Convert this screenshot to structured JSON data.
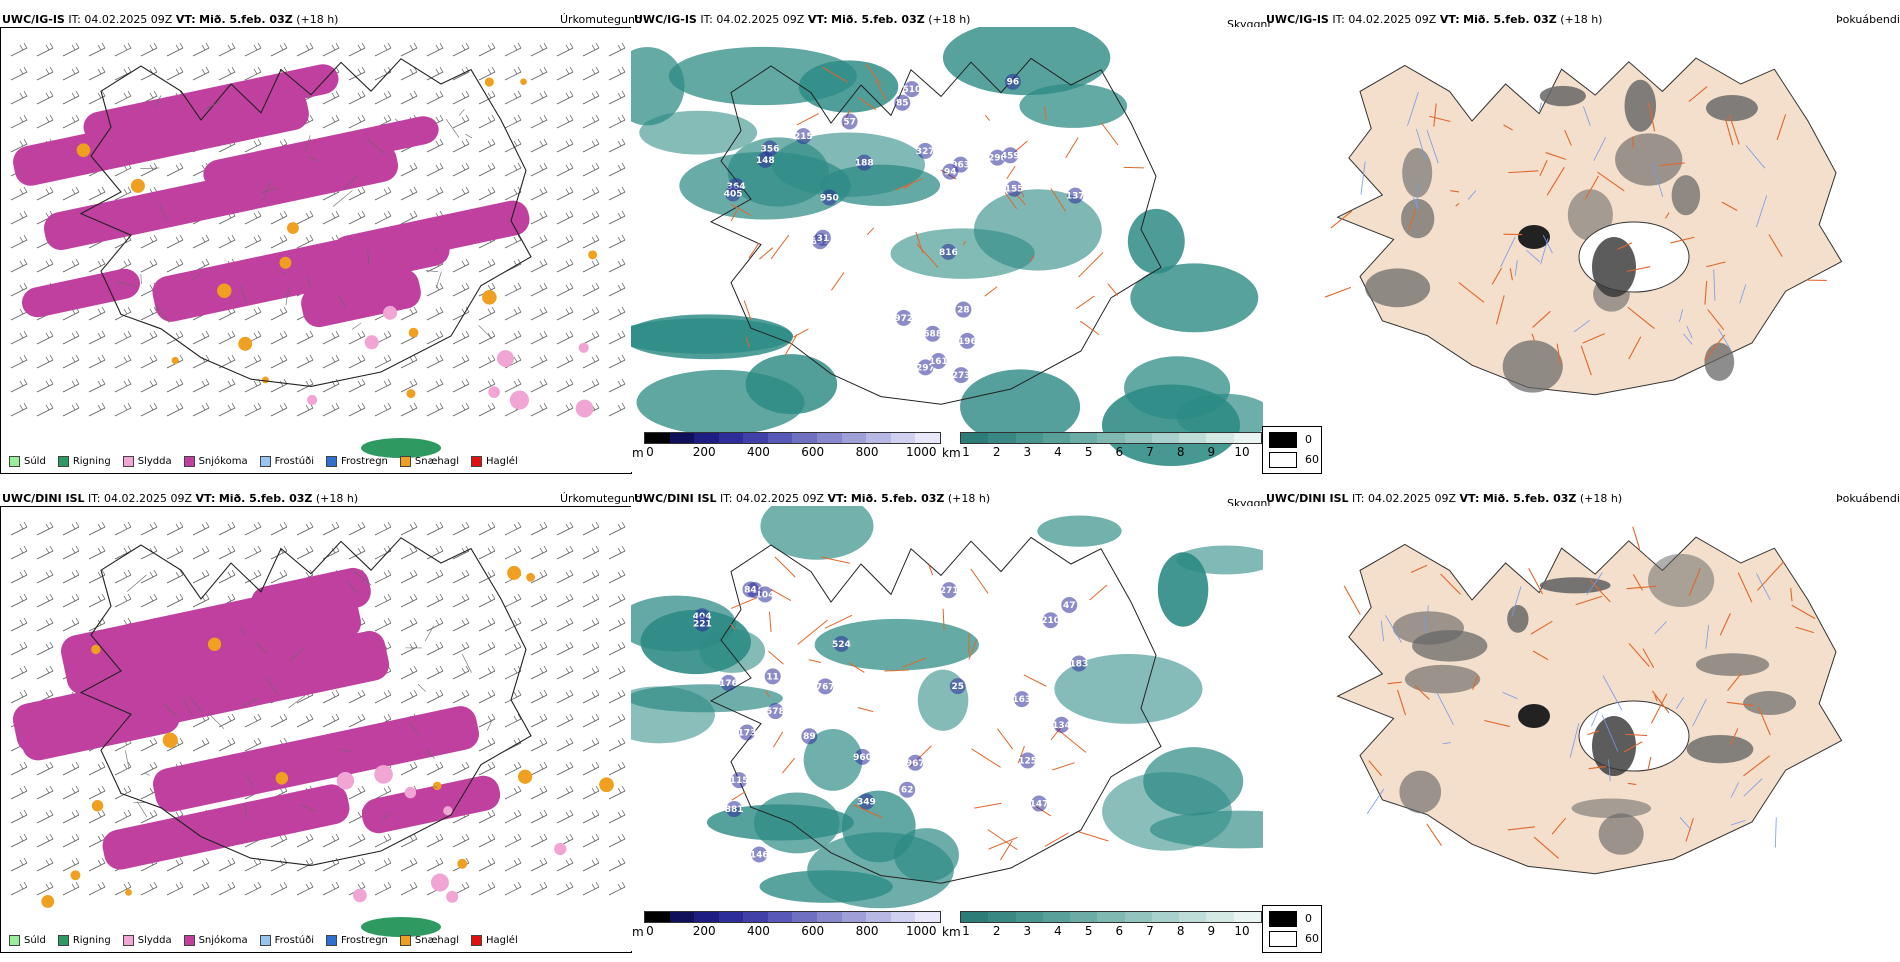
{
  "rows": [
    {
      "model": "UWC/IG-IS",
      "it_label": "IT:",
      "it_value": "04.02.2025 09Z",
      "vt_label": "VT:",
      "vt_value": "Mið. 5.feb. 03Z",
      "lead": "(+18 h)",
      "titles": {
        "ptype": "Úrkomutegund",
        "cloud": "Skyggni",
        "fog": "Þokuábendi"
      }
    },
    {
      "model": "UWC/DINI ISL",
      "it_label": "IT:",
      "it_value": "04.02.2025 09Z",
      "vt_label": "VT:",
      "vt_value": "Mið. 5.feb. 03Z",
      "lead": "(+18 h)",
      "titles": {
        "ptype": "Úrkomutegund",
        "cloud": "Skyggni",
        "fog": "Þokuábendi"
      }
    }
  ],
  "ptype_legend": [
    {
      "label": "Súld",
      "color": "#99ee99"
    },
    {
      "label": "Rigning",
      "color": "#2e9960"
    },
    {
      "label": "Slydda",
      "color": "#f0a5d5"
    },
    {
      "label": "Snjókoma",
      "color": "#c040a0"
    },
    {
      "label": "Frostúði",
      "color": "#99c4f0"
    },
    {
      "label": "Frostregn",
      "color": "#2e6fd0"
    },
    {
      "label": "Snæhagl",
      "color": "#f0a020"
    },
    {
      "label": "Haglél",
      "color": "#e01010"
    }
  ],
  "ceiling_bar": {
    "unit": "m",
    "ticks": [
      "0",
      "200",
      "400",
      "600",
      "800",
      "1000"
    ],
    "colors": [
      "#000000",
      "#10105a",
      "#1e1e82",
      "#2e2e9a",
      "#4040a8",
      "#5858b8",
      "#7070c0",
      "#8888cc",
      "#a0a0d8",
      "#b8b8e4",
      "#d0d0f0",
      "#e8e8fa"
    ]
  },
  "cloud_bar": {
    "unit": "km",
    "ticks": [
      "1",
      "2",
      "3",
      "4",
      "5",
      "6",
      "7",
      "8",
      "9",
      "10"
    ],
    "colors": [
      "#2c7c78",
      "#3a8884",
      "#48948e",
      "#5aa09a",
      "#6caca6",
      "#80b8b2",
      "#94c4be",
      "#a8d0cc",
      "#bedcd8",
      "#d4e8e4",
      "#eaf4f2"
    ]
  },
  "fog_legend": {
    "low": "0",
    "high": "60"
  },
  "colors": {
    "snow": "#c040a0",
    "rain": "#2e9960",
    "sleet": "#f0a5d5",
    "graupel": "#f0a020",
    "cloud": "#2c8a84",
    "ceiling": "#2e2e9a",
    "land": "#f3dfcb",
    "roads": "#e0672c",
    "rivers": "#7799ee"
  },
  "ceiling_labels": [
    [
      "273",
      "327",
      "148",
      "963",
      "290",
      "155",
      "510",
      "688",
      "972",
      "816",
      "188",
      "196",
      "215",
      "297",
      "161",
      "459",
      "57",
      "94",
      "85",
      "356",
      "364",
      "96",
      "631",
      "950",
      "137",
      "405",
      "28",
      "31"
    ],
    [
      "416",
      "147",
      "163",
      "967",
      "115",
      "104",
      "125",
      "404",
      "271",
      "767",
      "134",
      "62",
      "524",
      "84",
      "11",
      "89",
      "221",
      "183",
      "960",
      "210",
      "146",
      "881",
      "176",
      "173",
      "25",
      "47",
      "578",
      "349"
    ]
  ]
}
